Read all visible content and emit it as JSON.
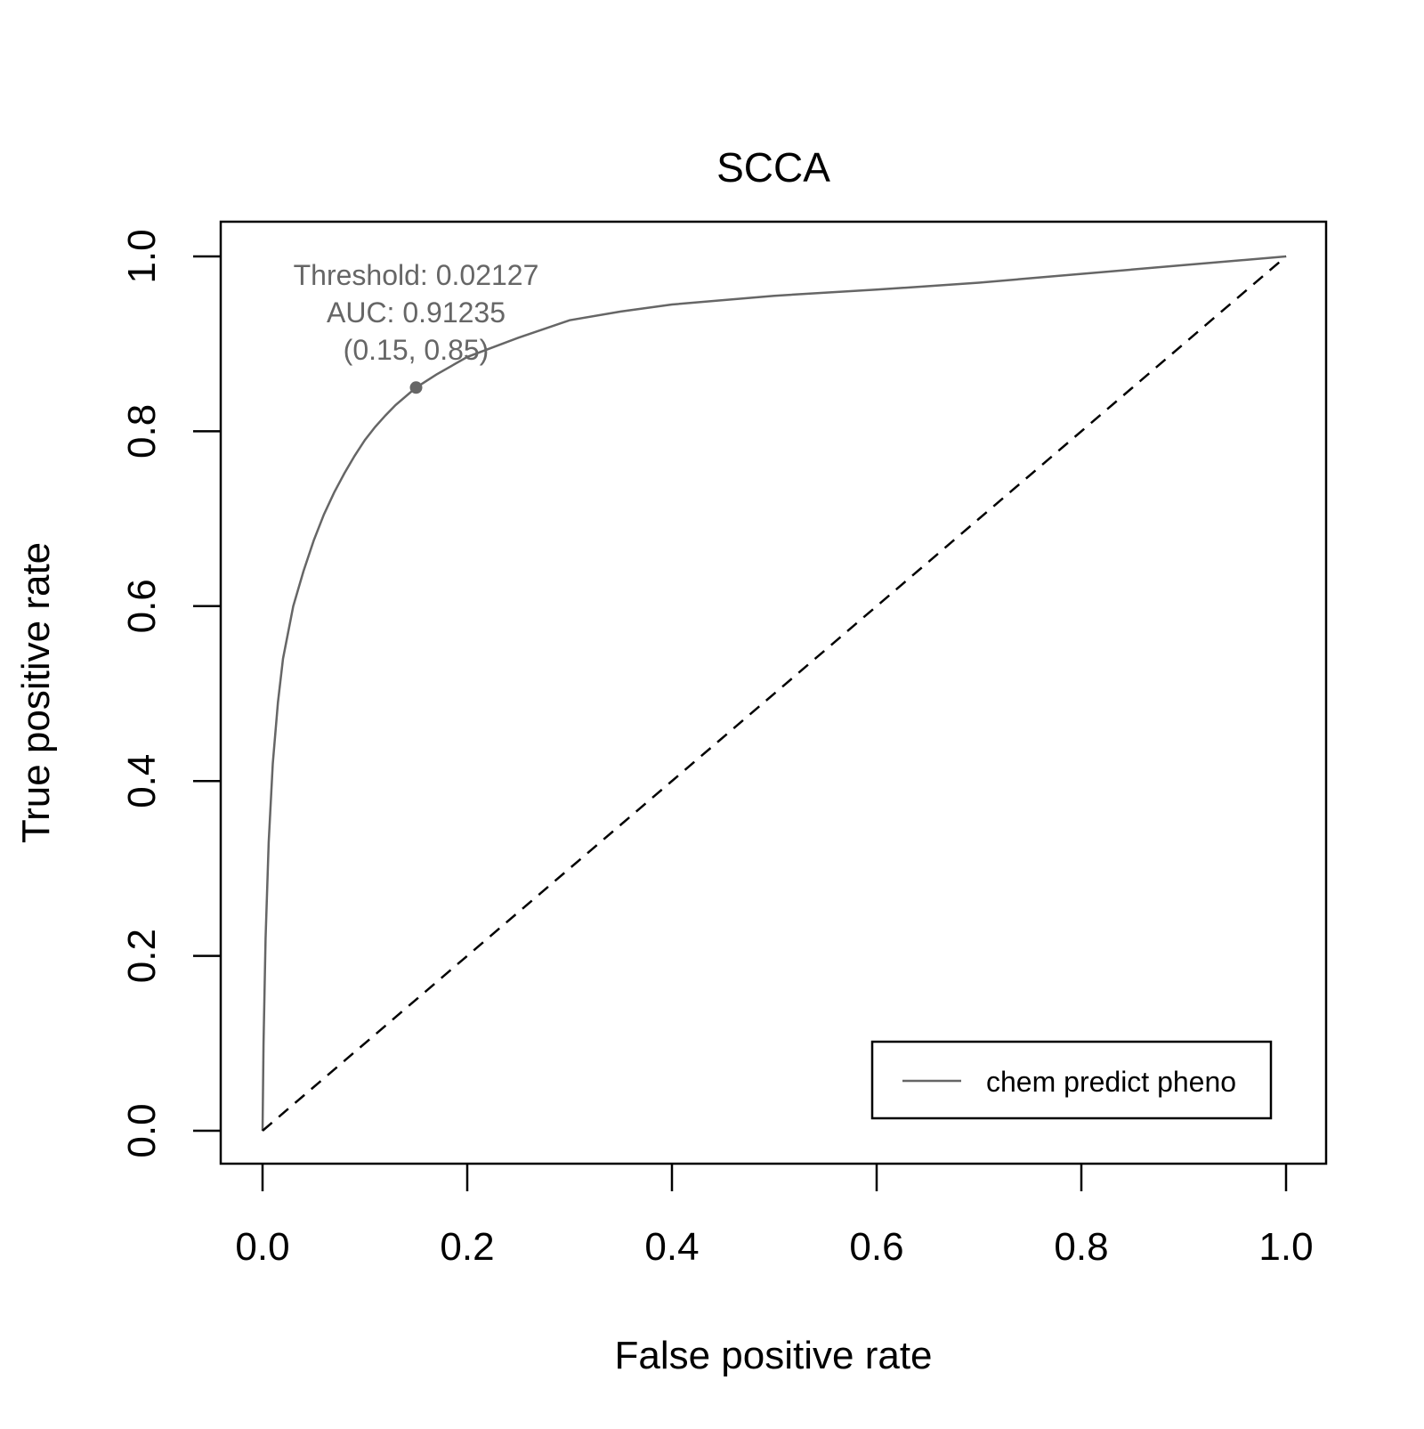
{
  "chart_data": {
    "type": "line",
    "title": "SCCA",
    "xlabel": "False positive rate",
    "ylabel": "True positive rate",
    "xlim": [
      0,
      1
    ],
    "ylim": [
      0,
      1
    ],
    "x_ticks": [
      "0.0",
      "0.2",
      "0.4",
      "0.6",
      "0.8",
      "1.0"
    ],
    "y_ticks": [
      "0.0",
      "0.2",
      "0.4",
      "0.6",
      "0.8",
      "1.0"
    ],
    "grid": false,
    "legend_position": "bottom-right",
    "series": [
      {
        "name": "chem predict pheno",
        "color": "#666666",
        "style": "solid",
        "x": [
          0.0,
          0.001,
          0.003,
          0.006,
          0.01,
          0.015,
          0.02,
          0.03,
          0.04,
          0.05,
          0.06,
          0.07,
          0.08,
          0.09,
          0.1,
          0.11,
          0.12,
          0.13,
          0.15,
          0.17,
          0.2,
          0.25,
          0.3,
          0.35,
          0.4,
          0.5,
          0.6,
          0.7,
          0.8,
          0.9,
          1.0
        ],
        "y": [
          0.0,
          0.1,
          0.22,
          0.33,
          0.42,
          0.49,
          0.54,
          0.6,
          0.64,
          0.675,
          0.705,
          0.73,
          0.752,
          0.772,
          0.79,
          0.805,
          0.818,
          0.83,
          0.85,
          0.865,
          0.885,
          0.907,
          0.927,
          0.937,
          0.945,
          0.955,
          0.962,
          0.97,
          0.98,
          0.99,
          1.0
        ]
      },
      {
        "name": "",
        "color": "#000000",
        "style": "dashed",
        "x": [
          0,
          1
        ],
        "y": [
          0,
          1
        ]
      }
    ],
    "highlight_point": {
      "x": 0.15,
      "y": 0.85,
      "color": "#666666",
      "labels": [
        "Threshold: 0.02127",
        "AUC: 0.91235",
        "(0.15, 0.85)"
      ]
    },
    "legend": {
      "entries": [
        "chem predict pheno"
      ]
    }
  }
}
